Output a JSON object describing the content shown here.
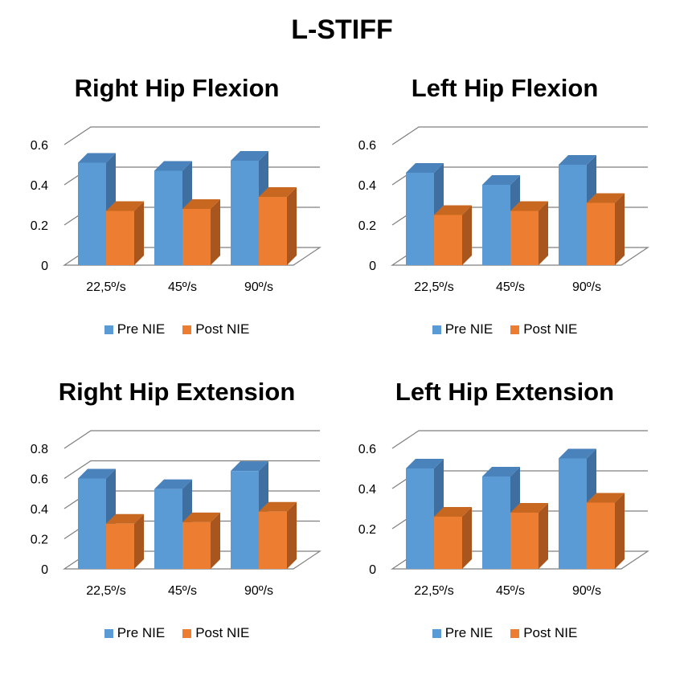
{
  "title": "L-STIFF",
  "colors": {
    "pre_front": "#5b9bd5",
    "pre_side": "#3f6fa0",
    "pre_top": "#4a82bb",
    "post_front": "#ed7d31",
    "post_side": "#a9551e",
    "post_top": "#c86820",
    "grid": "#7f7f7f"
  },
  "legend": [
    "Pre NIE",
    "Post NIE"
  ],
  "chart_data": [
    {
      "type": "bar",
      "title": "Right Hip Flexion",
      "categories": [
        "22,5º/s",
        "45º/s",
        "90º/s"
      ],
      "series": [
        {
          "name": "Pre NIE",
          "values": [
            0.51,
            0.47,
            0.52
          ]
        },
        {
          "name": "Post NIE",
          "values": [
            0.27,
            0.28,
            0.34
          ]
        }
      ],
      "ylim": [
        0,
        0.6
      ],
      "yticks": [
        "0",
        "0.2",
        "0.4",
        "0.6"
      ],
      "grid": true,
      "legend": "bottom"
    },
    {
      "type": "bar",
      "title": "Left Hip Flexion",
      "categories": [
        "22,5º/s",
        "45º/s",
        "90º/s"
      ],
      "series": [
        {
          "name": "Pre NIE",
          "values": [
            0.46,
            0.4,
            0.5
          ]
        },
        {
          "name": "Post NIE",
          "values": [
            0.25,
            0.27,
            0.31
          ]
        }
      ],
      "ylim": [
        0,
        0.6
      ],
      "yticks": [
        "0",
        "0.2",
        "0.4",
        "0.6"
      ],
      "grid": true,
      "legend": "bottom"
    },
    {
      "type": "bar",
      "title": "Right Hip Extension",
      "categories": [
        "22,5º/s",
        "45º/s",
        "90º/s"
      ],
      "series": [
        {
          "name": "Pre NIE",
          "values": [
            0.6,
            0.53,
            0.65
          ]
        },
        {
          "name": "Post NIE",
          "values": [
            0.3,
            0.31,
            0.38
          ]
        }
      ],
      "ylim": [
        0,
        0.8
      ],
      "yticks": [
        "0",
        "0.2",
        "0.4",
        "0.6",
        "0.8"
      ],
      "grid": true,
      "legend": "bottom"
    },
    {
      "type": "bar",
      "title": "Left Hip Extension",
      "categories": [
        "22,5º/s",
        "45º/s",
        "90º/s"
      ],
      "series": [
        {
          "name": "Pre NIE",
          "values": [
            0.5,
            0.46,
            0.55
          ]
        },
        {
          "name": "Post NIE",
          "values": [
            0.26,
            0.28,
            0.33
          ]
        }
      ],
      "ylim": [
        0,
        0.6
      ],
      "yticks": [
        "0",
        "0.2",
        "0.4",
        "0.6"
      ],
      "grid": true,
      "legend": "bottom"
    }
  ]
}
